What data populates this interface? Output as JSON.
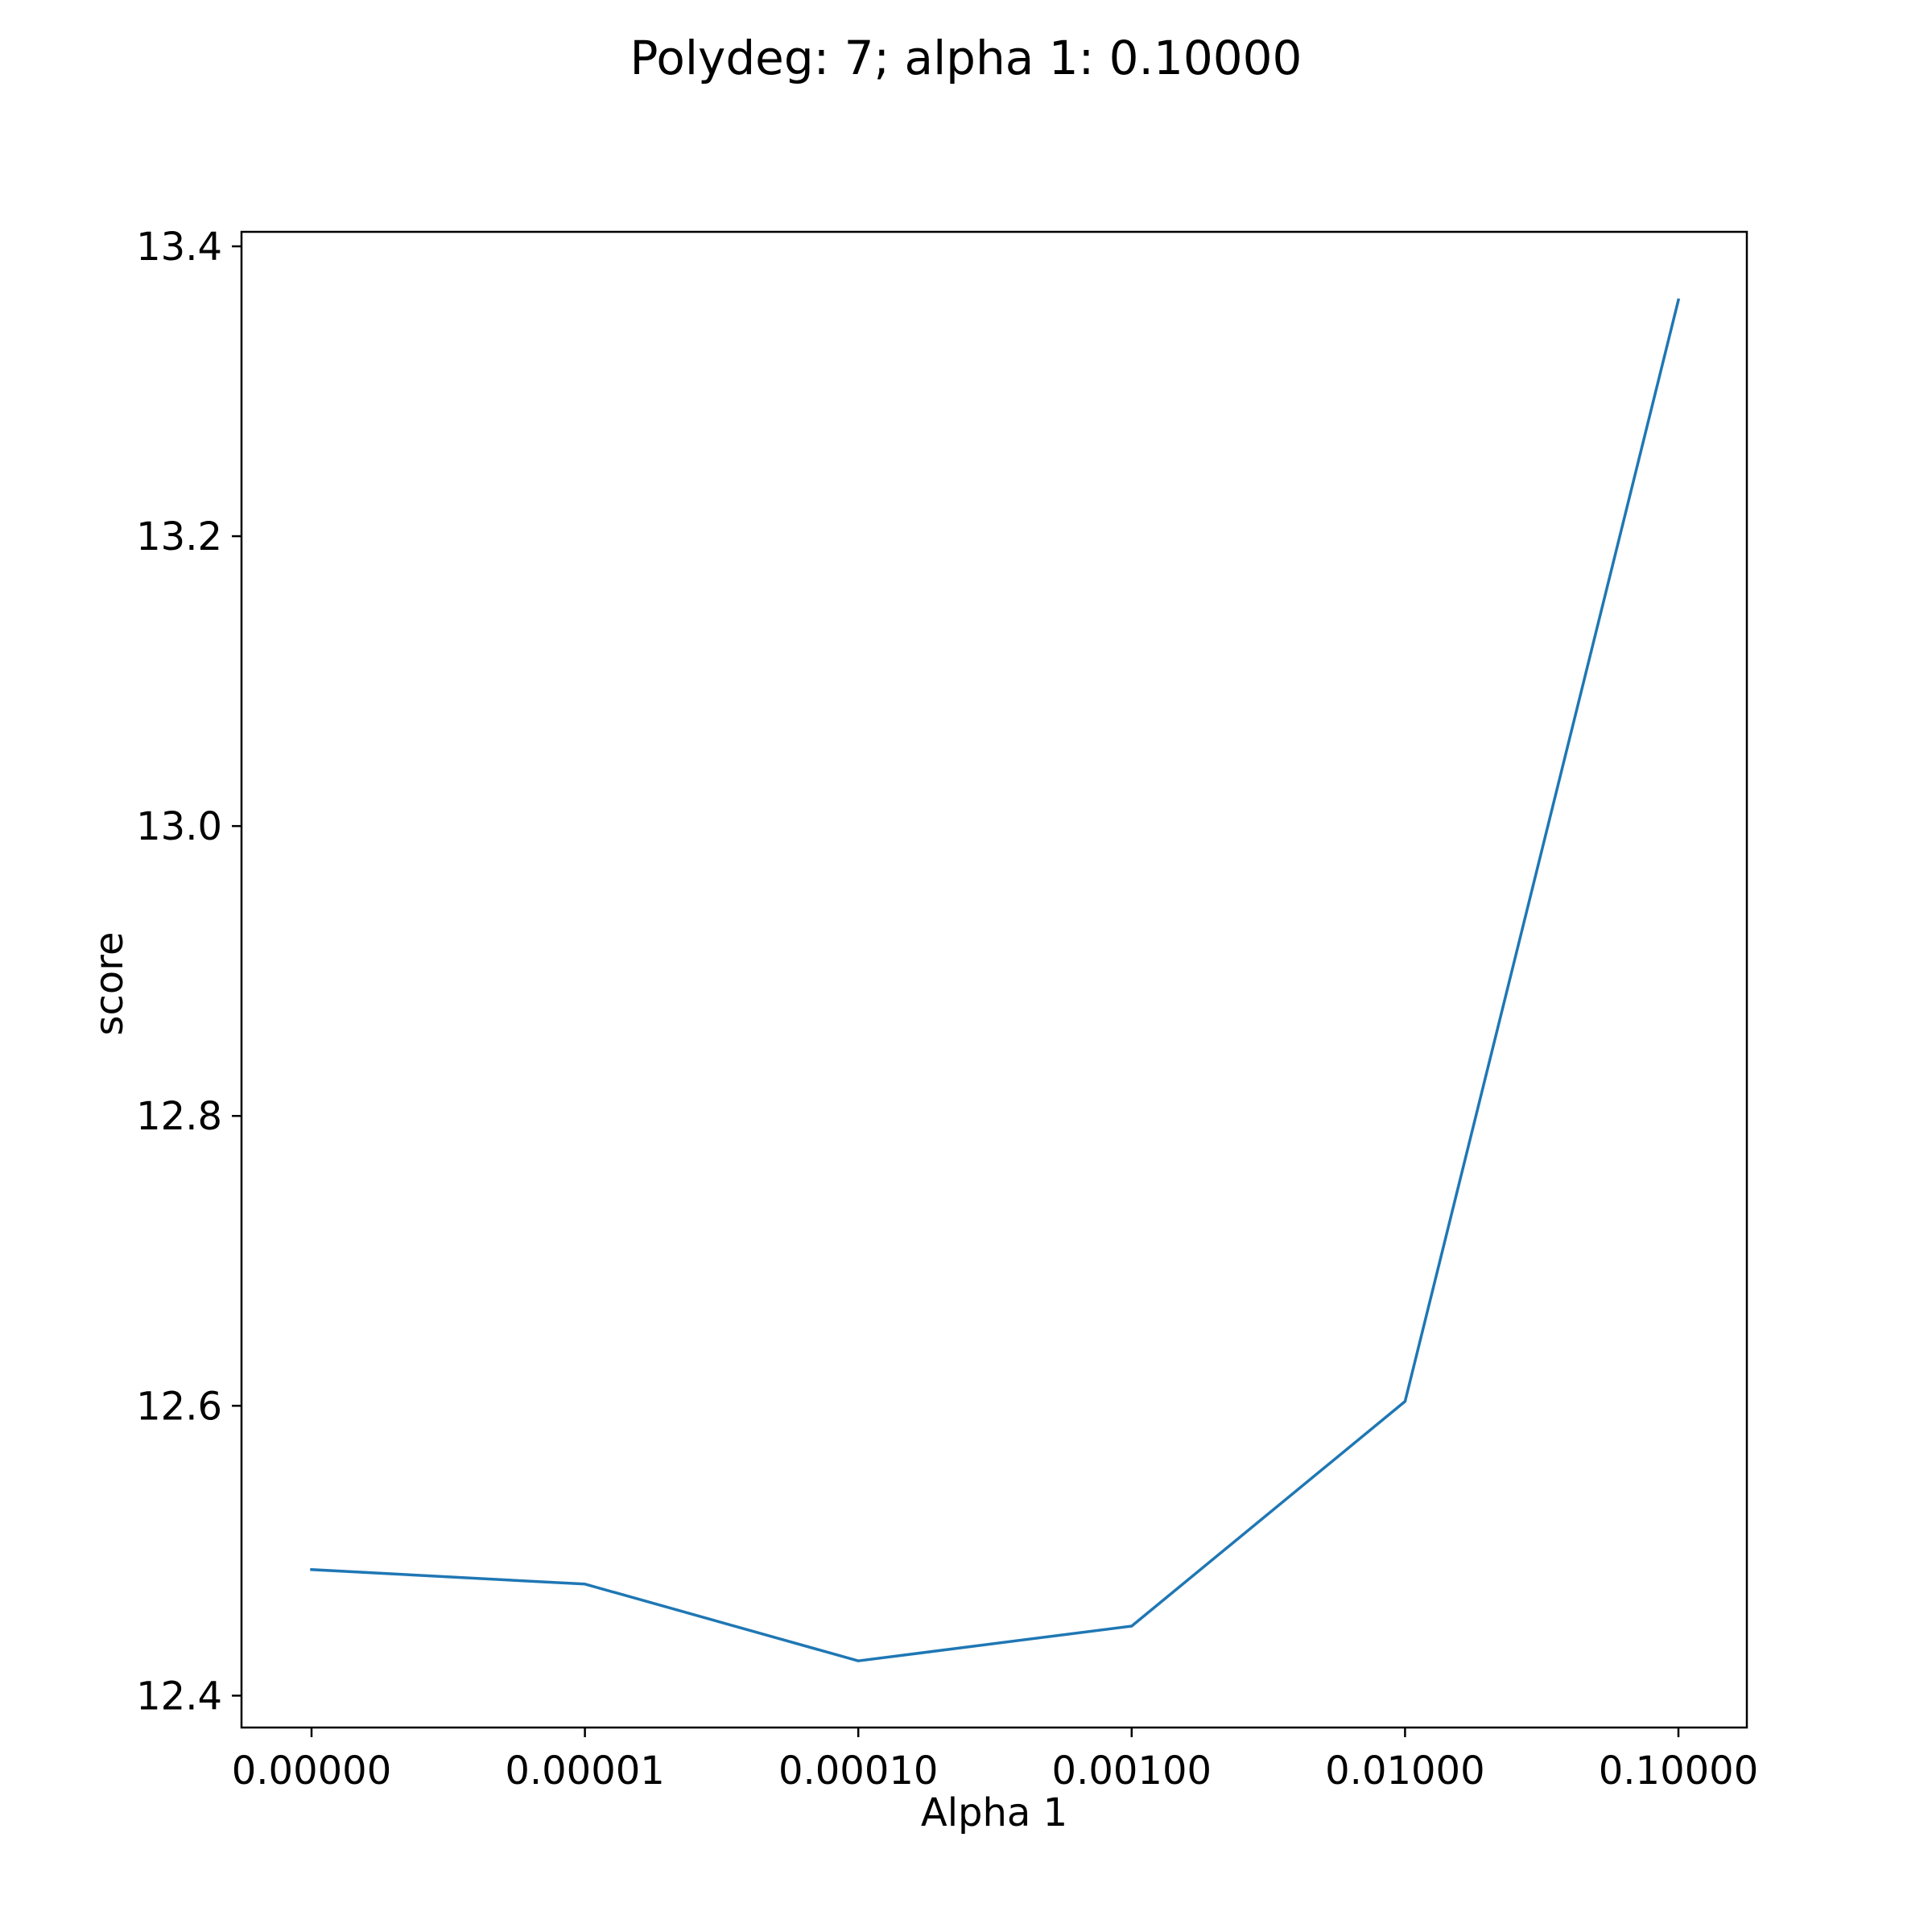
{
  "chart_data": {
    "type": "line",
    "title": "Polydeg: 7; alpha 1: 0.10000",
    "xlabel": "Alpha 1",
    "ylabel": "score",
    "x_scale": "categorical",
    "categories": [
      "0.00000",
      "0.00001",
      "0.00010",
      "0.00100",
      "0.01000",
      "0.10000"
    ],
    "series": [
      {
        "values": [
          12.487,
          12.477,
          12.424,
          12.448,
          12.603,
          13.363
        ]
      }
    ],
    "y_ticks": [
      "12.4",
      "12.6",
      "12.8",
      "13.0",
      "13.2",
      "13.4"
    ],
    "y_tick_values": [
      12.4,
      12.6,
      12.8,
      13.0,
      13.2,
      13.4
    ],
    "ylim": [
      12.378,
      13.41
    ],
    "grid": false,
    "legend": "none",
    "colors": {
      "series": "#1f77b4",
      "frame": "#000000",
      "background": "#ffffff"
    }
  }
}
